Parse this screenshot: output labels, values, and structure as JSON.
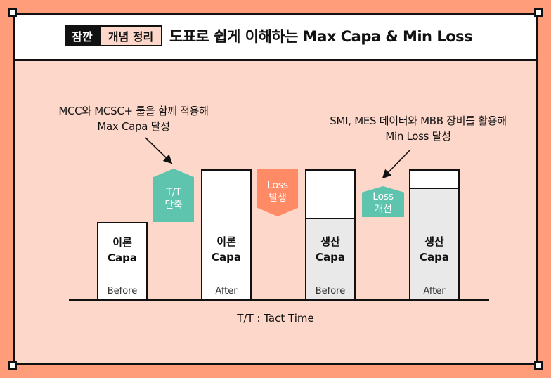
{
  "header": {
    "badge_dark": "잠깐",
    "badge_light": "개념 정리",
    "title": "도표로 쉽게 이해하는 Max Capa & Min Loss"
  },
  "annotations": {
    "left": [
      "MCC와 MCSC+ 툴을 함께 적용해",
      "Max Capa 달성"
    ],
    "right": [
      "SMI, MES 데이터와 MBB 장비를 활용해",
      "Min Loss 달성"
    ]
  },
  "tags": {
    "tt_reduce": [
      "T/T",
      "단축"
    ],
    "loss_occur": [
      "Loss",
      "발생"
    ],
    "loss_improve": [
      "Loss",
      "개선"
    ]
  },
  "bars": [
    {
      "label": [
        "이론",
        "Capa"
      ],
      "sub": "Before"
    },
    {
      "label": [
        "이론",
        "Capa"
      ],
      "sub": "After"
    },
    {
      "label": [
        "생산",
        "Capa"
      ],
      "sub": "Before"
    },
    {
      "label": [
        "생산",
        "Capa"
      ],
      "sub": "After"
    }
  ],
  "footnote": "T/T : Tact Time",
  "colors": {
    "background": "#FF9C7A",
    "panel": "#FDD7C9",
    "teal": "#5EC4AE",
    "orange": "#FF8A66",
    "gray_fill": "#E9E9E9"
  }
}
